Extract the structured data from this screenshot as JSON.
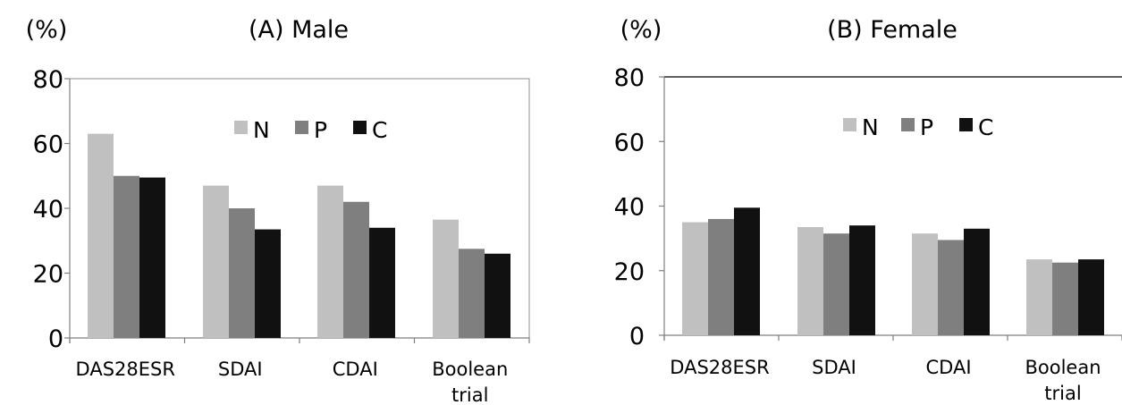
{
  "chart_data": [
    {
      "type": "bar",
      "title": "(A) Male",
      "ylabel": "(%)",
      "categories": [
        [
          "DAS28ESR"
        ],
        [
          "SDAI"
        ],
        [
          "CDAI"
        ],
        [
          "Boolean",
          "trial"
        ]
      ],
      "ylim": [
        0,
        80
      ],
      "yticks": [
        0,
        20,
        40,
        60,
        80
      ],
      "legend_position": "top-center",
      "series": [
        {
          "name": "N",
          "color": "#c0c0c0",
          "values": [
            63,
            47,
            47,
            36.5
          ]
        },
        {
          "name": "P",
          "color": "#7f7f7f",
          "values": [
            50,
            40,
            42,
            27.5
          ]
        },
        {
          "name": "C",
          "color": "#111111",
          "values": [
            49.5,
            33.5,
            34,
            26
          ]
        }
      ],
      "plot_border": "full box"
    },
    {
      "type": "bar",
      "title": "(B) Female",
      "ylabel": "(%)",
      "categories": [
        [
          "DAS28ESR"
        ],
        [
          "SDAI"
        ],
        [
          "CDAI"
        ],
        [
          "Boolean",
          "trial"
        ]
      ],
      "ylim": [
        0,
        80
      ],
      "yticks": [
        0,
        20,
        40,
        60,
        80
      ],
      "legend_position": "top-center",
      "series": [
        {
          "name": "N",
          "color": "#c0c0c0",
          "values": [
            35,
            33.5,
            31.5,
            23.5
          ]
        },
        {
          "name": "P",
          "color": "#7f7f7f",
          "values": [
            36,
            31.5,
            29.5,
            22.5
          ]
        },
        {
          "name": "C",
          "color": "#111111",
          "values": [
            39.5,
            34,
            33,
            23.5
          ]
        }
      ],
      "plot_border": "top line only"
    }
  ]
}
